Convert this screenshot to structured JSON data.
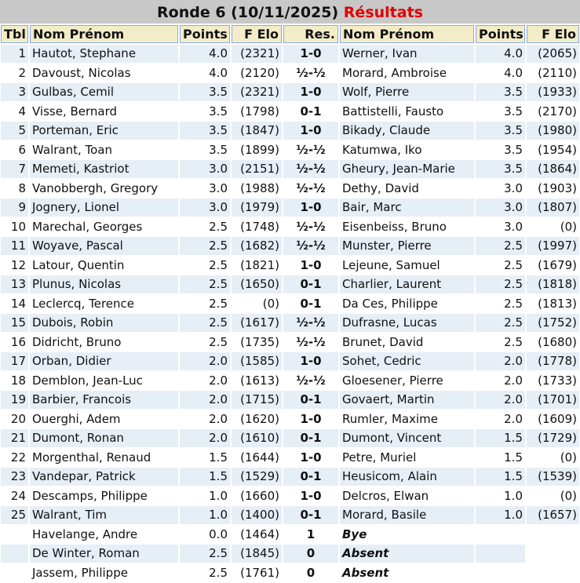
{
  "title": {
    "main": "Ronde 6 (10/11/2025)",
    "highlight": "Résultats",
    "highlight_color": "#e00000"
  },
  "headers": [
    "Tbl",
    "Nom Prénom",
    "Points",
    "F Elo",
    "Res.",
    "Nom Prénom",
    "Points",
    "F Elo"
  ],
  "rows": [
    [
      "1",
      "Hautot, Stephane",
      "4.0",
      "(2321)",
      "1-0",
      "Werner, Ivan",
      "4.0",
      "(2065)"
    ],
    [
      "2",
      "Davoust, Nicolas",
      "4.0",
      "(2120)",
      "½-½",
      "Morard, Ambroise",
      "4.0",
      "(2110)"
    ],
    [
      "3",
      "Gulbas, Cemil",
      "3.5",
      "(2321)",
      "1-0",
      "Wolf, Pierre",
      "3.5",
      "(1933)"
    ],
    [
      "4",
      "Visse, Bernard",
      "3.5",
      "(1798)",
      "0-1",
      "Battistelli, Fausto",
      "3.5",
      "(2170)"
    ],
    [
      "5",
      "Porteman, Eric",
      "3.5",
      "(1847)",
      "1-0",
      "Bikady, Claude",
      "3.5",
      "(1980)"
    ],
    [
      "6",
      "Walrant, Toan",
      "3.5",
      "(1899)",
      "½-½",
      "Katumwa, Iko",
      "3.5",
      "(1954)"
    ],
    [
      "7",
      "Memeti, Kastriot",
      "3.0",
      "(2151)",
      "½-½",
      "Gheury, Jean-Marie",
      "3.5",
      "(1864)"
    ],
    [
      "8",
      "Vanobbergh, Gregory",
      "3.0",
      "(1988)",
      "½-½",
      "Dethy, David",
      "3.0",
      "(1903)"
    ],
    [
      "9",
      "Jognery, Lionel",
      "3.0",
      "(1979)",
      "1-0",
      "Bair, Marc",
      "3.0",
      "(1807)"
    ],
    [
      "10",
      "Marechal, Georges",
      "2.5",
      "(1748)",
      "½-½",
      "Eisenbeiss, Bruno",
      "3.0",
      "(0)"
    ],
    [
      "11",
      "Woyave, Pascal",
      "2.5",
      "(1682)",
      "½-½",
      "Munster, Pierre",
      "2.5",
      "(1997)"
    ],
    [
      "12",
      "Latour, Quentin",
      "2.5",
      "(1821)",
      "1-0",
      "Lejeune, Samuel",
      "2.5",
      "(1679)"
    ],
    [
      "13",
      "Plunus, Nicolas",
      "2.5",
      "(1650)",
      "0-1",
      "Charlier, Laurent",
      "2.5",
      "(1818)"
    ],
    [
      "14",
      "Leclercq, Terence",
      "2.5",
      "(0)",
      "0-1",
      "Da Ces, Philippe",
      "2.5",
      "(1813)"
    ],
    [
      "15",
      "Dubois, Robin",
      "2.5",
      "(1617)",
      "½-½",
      "Dufrasne, Lucas",
      "2.5",
      "(1752)"
    ],
    [
      "16",
      "Didricht, Bruno",
      "2.5",
      "(1735)",
      "½-½",
      "Brunet, David",
      "2.5",
      "(1680)"
    ],
    [
      "17",
      "Orban, Didier",
      "2.0",
      "(1585)",
      "1-0",
      "Sohet, Cedric",
      "2.0",
      "(1778)"
    ],
    [
      "18",
      "Demblon, Jean-Luc",
      "2.0",
      "(1613)",
      "½-½",
      "Gloesener, Pierre",
      "2.0",
      "(1733)"
    ],
    [
      "19",
      "Barbier, Francois",
      "2.0",
      "(1715)",
      "0-1",
      "Govaert, Martin",
      "2.0",
      "(1701)"
    ],
    [
      "20",
      "Ouerghi, Adem",
      "2.0",
      "(1620)",
      "1-0",
      "Rumler, Maxime",
      "2.0",
      "(1609)"
    ],
    [
      "21",
      "Dumont, Ronan",
      "2.0",
      "(1610)",
      "0-1",
      "Dumont, Vincent",
      "1.5",
      "(1729)"
    ],
    [
      "22",
      "Morgenthal, Renaud",
      "1.5",
      "(1644)",
      "1-0",
      "Petre, Muriel",
      "1.5",
      "(0)"
    ],
    [
      "23",
      "Vandepar, Patrick",
      "1.5",
      "(1529)",
      "0-1",
      "Heusicom, Alain",
      "1.5",
      "(1539)"
    ],
    [
      "24",
      "Descamps, Philippe",
      "1.0",
      "(1660)",
      "1-0",
      "Delcros, Elwan",
      "1.0",
      "(0)"
    ],
    [
      "25",
      "Walrant, Tim",
      "1.0",
      "(1400)",
      "0-1",
      "Morard, Basile",
      "1.0",
      "(1657)"
    ]
  ],
  "specials": [
    [
      "",
      "Havelange, Andre",
      "0.0",
      "(1464)",
      "1",
      "Bye",
      "",
      ""
    ],
    [
      "",
      "De Winter, Roman",
      "2.5",
      "(1845)",
      "0",
      "Absent",
      "",
      ""
    ],
    [
      "",
      "Jassem, Philippe",
      "2.5",
      "(1761)",
      "0",
      "Absent",
      "",
      ""
    ]
  ]
}
